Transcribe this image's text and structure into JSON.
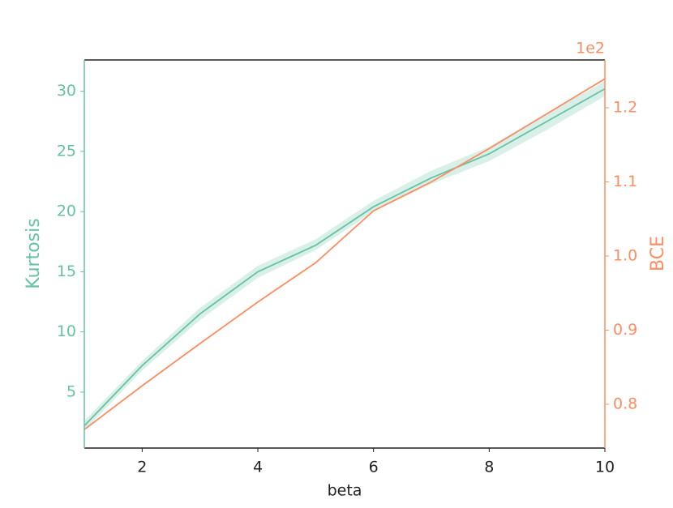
{
  "chart_data": {
    "type": "line",
    "x": [
      1,
      2,
      3,
      4,
      5,
      6,
      7,
      8,
      9,
      10
    ],
    "xlim": [
      1,
      10
    ],
    "xticks": [
      2,
      4,
      6,
      8,
      10
    ],
    "xlabel": "beta",
    "ylabel": "Kurtosis",
    "ylim": [
      0.35,
      32.6
    ],
    "yticks": [
      5,
      10,
      15,
      20,
      25,
      30
    ],
    "y2label": "BCE",
    "y2lim": [
      0.741,
      1.2645
    ],
    "y2ticks": [
      0.8,
      0.9,
      {
        "value": 1,
        "label": "1.0"
      },
      1.1,
      1.2
    ],
    "y2_offset_label": "1e2",
    "series": [
      {
        "name": "Kurtosis",
        "color": "#66c2a5",
        "axis": "y",
        "values": [
          2.2,
          7.2,
          11.5,
          15.0,
          17.2,
          20.4,
          22.8,
          24.8,
          27.5,
          30.2
        ],
        "lower": [
          1.8,
          6.8,
          11.0,
          14.5,
          16.8,
          20.0,
          22.3,
          24.2,
          26.8,
          29.6
        ],
        "upper": [
          2.6,
          7.6,
          12.0,
          15.5,
          17.7,
          20.9,
          23.4,
          25.4,
          28.2,
          30.8
        ]
      },
      {
        "name": "BCE",
        "color": "#fc8d62",
        "axis": "y2",
        "values": [
          0.766,
          0.825,
          0.882,
          0.938,
          0.991,
          1.061,
          1.1,
          1.145,
          1.192,
          1.239
        ]
      }
    ]
  }
}
